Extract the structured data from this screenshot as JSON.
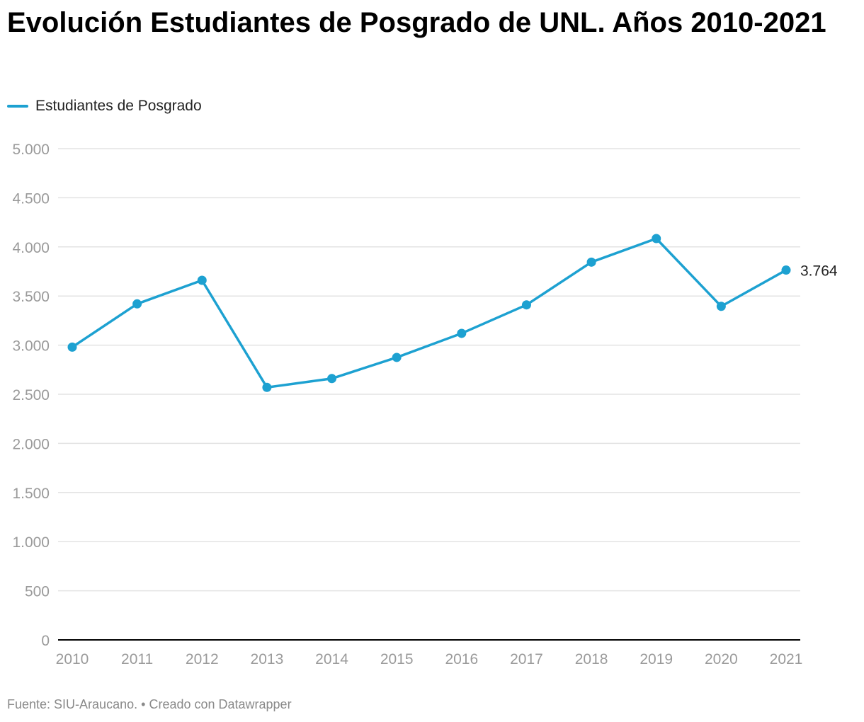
{
  "title": "Evolución Estudiantes de Posgrado de UNL. Años 2010-2021",
  "footer": {
    "source": "Fuente: SIU-Araucano.",
    "separator": "•",
    "credit": "Creado con Datawrapper"
  },
  "colors": {
    "series": "#1da1d1",
    "grid": "#e3e3e3",
    "axis": "#000000",
    "tick_text": "#9a9a9a"
  },
  "chart_data": {
    "type": "line",
    "title": "Evolución Estudiantes de Posgrado de UNL. Años 2010-2021",
    "xlabel": "",
    "ylabel": "",
    "x": [
      "2010",
      "2011",
      "2012",
      "2013",
      "2014",
      "2015",
      "2016",
      "2017",
      "2018",
      "2019",
      "2020",
      "2021"
    ],
    "series": [
      {
        "name": "Estudiantes de Posgrado",
        "values": [
          2980,
          3420,
          3660,
          2570,
          2660,
          2875,
          3120,
          3410,
          3845,
          4085,
          3395,
          3764
        ]
      }
    ],
    "ylim": [
      0,
      5000
    ],
    "yticks": [
      0,
      500,
      1000,
      1500,
      2000,
      2500,
      3000,
      3500,
      4000,
      4500,
      5000
    ],
    "ytick_labels": [
      "0",
      "500",
      "1.000",
      "1.500",
      "2.000",
      "2.500",
      "3.000",
      "3.500",
      "4.000",
      "4.500",
      "5.000"
    ],
    "last_value_label": "3.764",
    "grid": true,
    "legend": "top-left",
    "markers": true
  }
}
